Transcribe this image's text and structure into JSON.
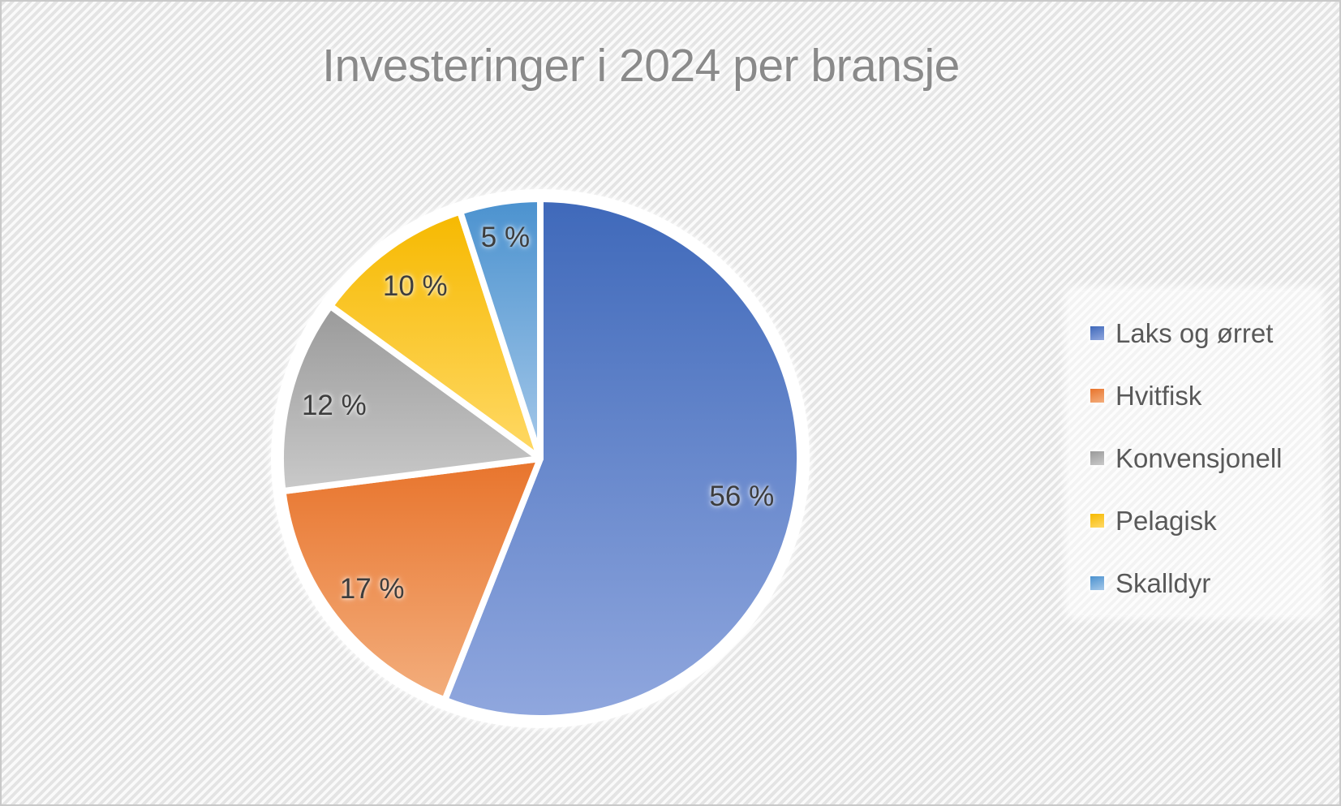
{
  "title": "Investeringer i 2024 per bransje",
  "background": {
    "pattern": "diagonal-stripes",
    "stripe_color": "#e4e4e4",
    "stripe_gap_color": "#fafafa",
    "frame_border_color": "#c9c9c9"
  },
  "chart_data": {
    "type": "pie",
    "title": "Investeringer i 2024 per bransje",
    "unit": "%",
    "start_angle_deg": 0,
    "direction": "clockwise",
    "legend_position": "right",
    "slice_border_color": "#ffffff",
    "label_color": "#3d3d3d",
    "legend_text_color": "#595959",
    "title_color": "#8a8a8a",
    "series": [
      {
        "name": "Laks og ørret",
        "value": 56,
        "label": "56 %",
        "color_dark": "#3f69ba",
        "color_light": "#90a7de"
      },
      {
        "name": "Hvitfisk",
        "value": 17,
        "label": "17 %",
        "color_dark": "#e8742c",
        "color_light": "#f3ae7d"
      },
      {
        "name": "Konvensjonell",
        "value": 12,
        "label": "12 %",
        "color_dark": "#9a9a9a",
        "color_light": "#c9c9c9"
      },
      {
        "name": "Pelagisk",
        "value": 10,
        "label": "10 %",
        "color_dark": "#f6b900",
        "color_light": "#ffd966"
      },
      {
        "name": "Skalldyr",
        "value": 5,
        "label": "5 %",
        "color_dark": "#4b92cf",
        "color_light": "#a5c8e9"
      }
    ]
  }
}
